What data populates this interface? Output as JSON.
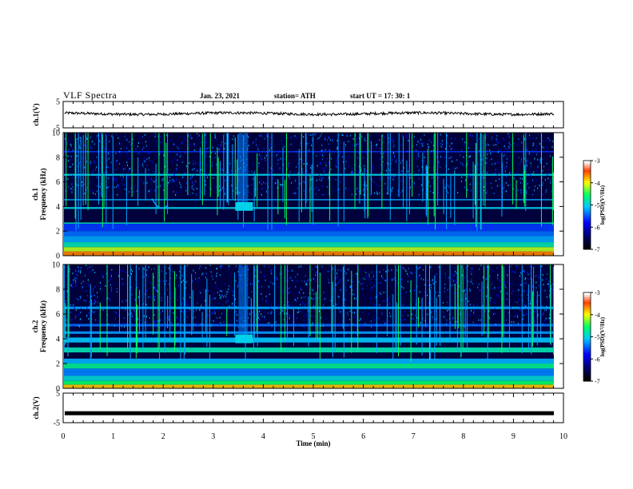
{
  "header": {
    "title": "VLF Spectra",
    "date": "Jan. 23, 2021",
    "station": "station= ATH",
    "start_ut": "start  UT =   17: 30: 1"
  },
  "chart_data": [
    {
      "type": "line",
      "panel": "ch1-voltage",
      "ylabel": "ch.1(V)",
      "ylim": [
        -5,
        5
      ],
      "yticks": [
        "5",
        "-5"
      ],
      "xlim": [
        0,
        10
      ],
      "series": [
        {
          "baseline": 0.4,
          "noise": 0.5,
          "color": "#000000"
        }
      ]
    },
    {
      "type": "heatmap",
      "panel": "ch1-spectrogram",
      "ylabel": "ch.1\nFrequency  (kHz)",
      "ylim": [
        0,
        10
      ],
      "yticks": [
        "0",
        "2",
        "4",
        "6",
        "8",
        "10"
      ],
      "xlim": [
        0,
        10
      ],
      "colorbar": {
        "label": "log(PSD)(V²/Hz)",
        "range": [
          -7,
          -3
        ],
        "ticks": [
          "-3",
          "-4",
          "-5",
          "-6",
          "-7"
        ]
      },
      "features": {
        "burst_time_min": 3.6,
        "burst_freq_khz": 4,
        "whistler_time_min": 2.0,
        "whistler_freq_khz": 4
      }
    },
    {
      "type": "heatmap",
      "panel": "ch2-spectrogram",
      "ylabel": "ch.2\nFrequency  (kHz)",
      "ylim": [
        0,
        10
      ],
      "yticks": [
        "0",
        "2",
        "4",
        "6",
        "8",
        "10"
      ],
      "xlim": [
        0,
        10
      ],
      "colorbar": {
        "label": "log(PSD)(V²/Hz)",
        "range": [
          -7,
          -3
        ],
        "ticks": [
          "-3",
          "-4",
          "-5",
          "-6",
          "-7"
        ]
      },
      "features": {
        "burst_time_min": 3.6,
        "burst_freq_khz": 4
      }
    },
    {
      "type": "line",
      "panel": "ch2-voltage",
      "ylabel": "ch.2(V)",
      "ylim": [
        -5,
        5
      ],
      "yticks": [
        "5",
        "-5"
      ],
      "xlabel": "Time  (min)",
      "xlim": [
        0,
        10
      ],
      "xticks": [
        "0",
        "1",
        "2",
        "3",
        "4",
        "5",
        "6",
        "7",
        "8",
        "9",
        "10"
      ],
      "series": [
        {
          "baseline": -1.8,
          "noise": 0.15,
          "color": "#000000"
        }
      ]
    }
  ]
}
